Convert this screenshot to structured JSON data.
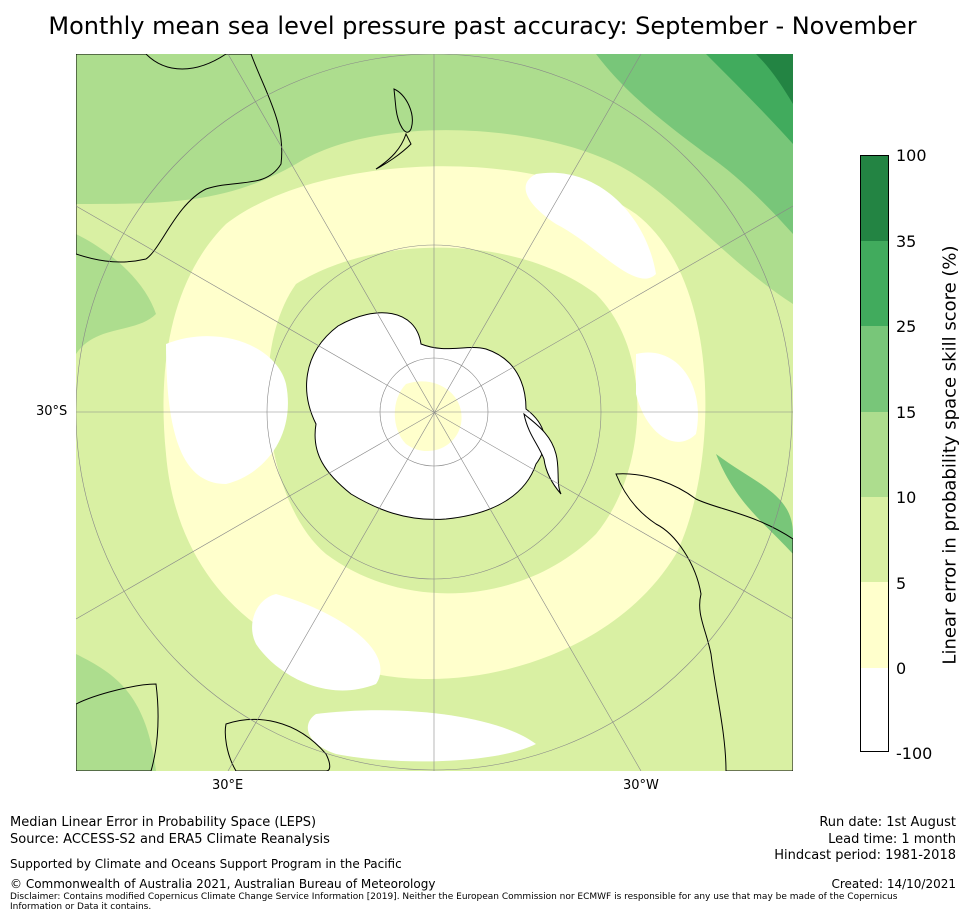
{
  "title": "Monthly mean sea level pressure past accuracy: September - November",
  "map": {
    "labels": {
      "lat_30s": "30°S",
      "lon_30e": "30°E",
      "lon_30w": "30°W"
    }
  },
  "colorbar": {
    "label": "Linear error in probability space skill score (%)",
    "ticks": [
      "100",
      "35",
      "25",
      "15",
      "10",
      "5",
      "0",
      "-100"
    ],
    "bins": [
      {
        "range": "-100 to 0",
        "color": "#ffffff"
      },
      {
        "range": "0 to 5",
        "color": "#ffffcc"
      },
      {
        "range": "5 to 10",
        "color": "#d9f0a3"
      },
      {
        "range": "10 to 15",
        "color": "#addd8e"
      },
      {
        "range": "15 to 25",
        "color": "#78c679"
      },
      {
        "range": "25 to 35",
        "color": "#41ab5d"
      },
      {
        "range": "35 to 100",
        "color": "#238443"
      }
    ]
  },
  "footer": {
    "line1": "Median Linear Error in Probability Space (LEPS)",
    "line2": "Source: ACCESS-S2 and ERA5 Climate Reanalysis",
    "line3": "Supported by Climate and Oceans Support Program in the Pacific",
    "line4": "© Commonwealth of Australia 2021, Australian Bureau of Meteorology",
    "disclaimer": "Disclaimer: Contains modified Copernicus Climate Change Service Information [2019]. Neither the European Commission nor ECMWF is responsible for any use that may be made of the Copernicus Information or Data it contains.",
    "run_date": "Run date: 1st August",
    "lead_time": "Lead time: 1 month",
    "hindcast": "Hindcast period: 1981-2018",
    "created": "Created: 14/10/2021"
  }
}
